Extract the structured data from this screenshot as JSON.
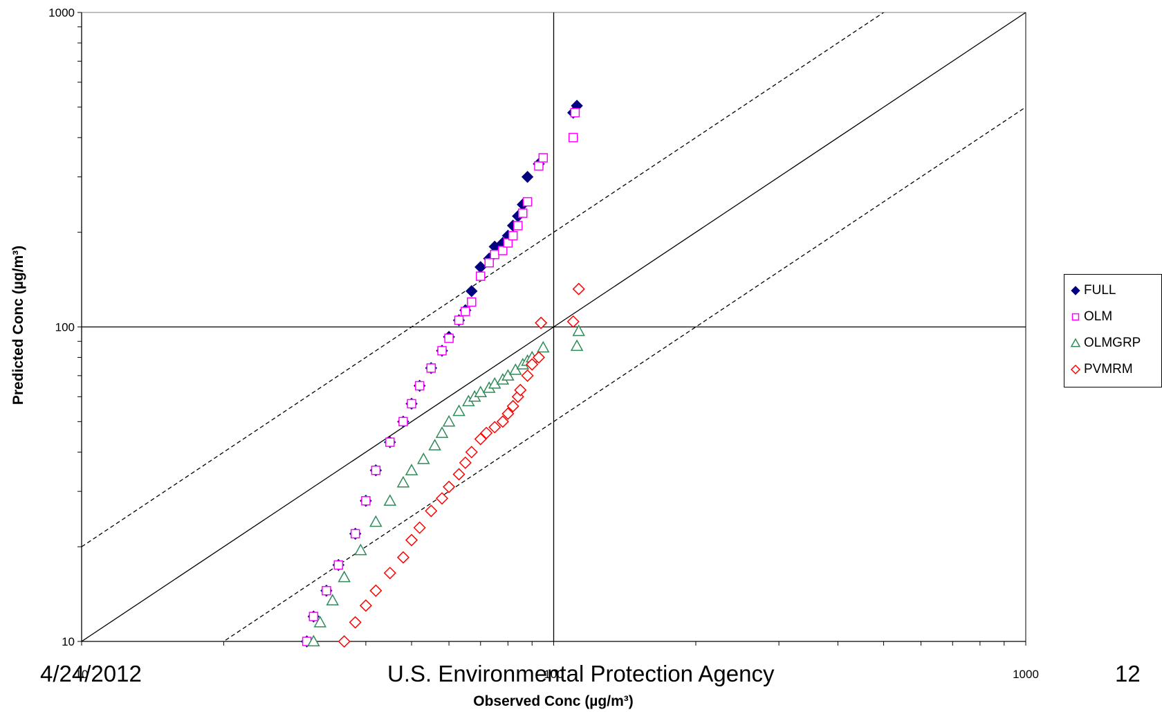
{
  "chart_data": {
    "type": "scatter",
    "title": "",
    "xlabel": "Observed  Conc (µg/m³)",
    "ylabel": "Predicted Conc (µg/m³)",
    "x_scale": "log",
    "y_scale": "log",
    "xlim": [
      10,
      1000
    ],
    "ylim": [
      10,
      1000
    ],
    "x_ticks": [
      "10",
      "100",
      "1000"
    ],
    "y_ticks": [
      "10",
      "100",
      "1000"
    ],
    "grid": false,
    "legend": "right",
    "reference_lines": [
      {
        "label": "1:1",
        "factor": 1,
        "style": "solid"
      },
      {
        "label": "factor of 2 over",
        "factor": 2,
        "style": "dashed"
      },
      {
        "label": "factor of 2 under",
        "factor": 0.5,
        "style": "dashed"
      }
    ],
    "series": [
      {
        "name": "FULL",
        "marker": "diamond-filled",
        "color": "#000080",
        "x": [
          30.0,
          31.0,
          33.0,
          35.0,
          38.0,
          40.0,
          42.0,
          45.0,
          48.0,
          50.0,
          52.0,
          55.0,
          58.0,
          60.0,
          63.0,
          65.0,
          67.0,
          70.0,
          73.0,
          75.0,
          78.0,
          80.0,
          82.0,
          84.0,
          86.0,
          88.0,
          93.0,
          110.0,
          112.0
        ],
        "y": [
          10.0,
          12.0,
          14.5,
          17.5,
          22.0,
          28.0,
          35.0,
          43.0,
          50.0,
          57.0,
          65.0,
          74.0,
          84.0,
          93.0,
          105.0,
          113.0,
          130.0,
          155.0,
          165.0,
          180.0,
          185.0,
          195.0,
          210.0,
          225.0,
          245.0,
          300.0,
          330.0,
          480.0,
          505.0
        ]
      },
      {
        "name": "OLM",
        "marker": "square-open",
        "color": "#ff00ff",
        "x": [
          30.0,
          31.0,
          33.0,
          35.0,
          38.0,
          40.0,
          42.0,
          45.0,
          48.0,
          50.0,
          52.0,
          55.0,
          58.0,
          60.0,
          63.0,
          65.0,
          67.0,
          70.0,
          73.0,
          75.0,
          78.0,
          80.0,
          82.0,
          84.0,
          86.0,
          88.0,
          93.0,
          95.0,
          110.0,
          111.0
        ],
        "y": [
          10.0,
          12.0,
          14.5,
          17.5,
          22.0,
          28.0,
          35.0,
          43.0,
          50.0,
          57.0,
          65.0,
          74.0,
          84.0,
          92.0,
          105.0,
          112.0,
          120.0,
          145.0,
          160.0,
          170.0,
          175.0,
          185.0,
          195.0,
          210.0,
          230.0,
          250.0,
          325.0,
          345.0,
          400.0,
          480.0
        ]
      },
      {
        "name": "OLMGRP",
        "marker": "triangle-open",
        "color": "#2e8b57",
        "x": [
          31.0,
          32.0,
          34.0,
          36.0,
          39.0,
          42.0,
          45.0,
          48.0,
          50.0,
          53.0,
          56.0,
          58.0,
          60.0,
          63.0,
          66.0,
          68.0,
          70.0,
          73.0,
          75.0,
          78.0,
          80.0,
          83.0,
          86.0,
          88.0,
          90.0,
          95.0,
          112.0,
          113.0
        ],
        "y": [
          10.0,
          11.5,
          13.5,
          16.0,
          19.5,
          24.0,
          28.0,
          32.0,
          35.0,
          38.0,
          42.0,
          46.0,
          50.0,
          54.0,
          58.0,
          60.0,
          62.0,
          64.0,
          66.0,
          68.0,
          70.0,
          73.0,
          76.0,
          78.0,
          80.0,
          86.0,
          87.0,
          97.0
        ]
      },
      {
        "name": "PVMRM",
        "marker": "diamond-open",
        "color": "#ff0000",
        "x": [
          36.0,
          38.0,
          40.0,
          42.0,
          45.0,
          48.0,
          50.0,
          52.0,
          55.0,
          58.0,
          60.0,
          63.0,
          65.0,
          67.0,
          70.0,
          72.0,
          75.0,
          78.0,
          80.0,
          82.0,
          84.0,
          85.0,
          88.0,
          90.0,
          93.0,
          94.0,
          110.0,
          113.0
        ],
        "y": [
          10.0,
          11.5,
          13.0,
          14.5,
          16.5,
          18.5,
          21.0,
          23.0,
          26.0,
          28.5,
          31.0,
          34.0,
          37.0,
          40.0,
          44.0,
          46.0,
          48.0,
          50.0,
          53.0,
          56.0,
          60.0,
          63.0,
          70.0,
          76.0,
          80.0,
          103.0,
          104.0,
          132.0
        ]
      }
    ]
  },
  "footer": {
    "date": "4/24/2012",
    "organization": "U.S. Environmental Protection Agency",
    "page": "12"
  }
}
